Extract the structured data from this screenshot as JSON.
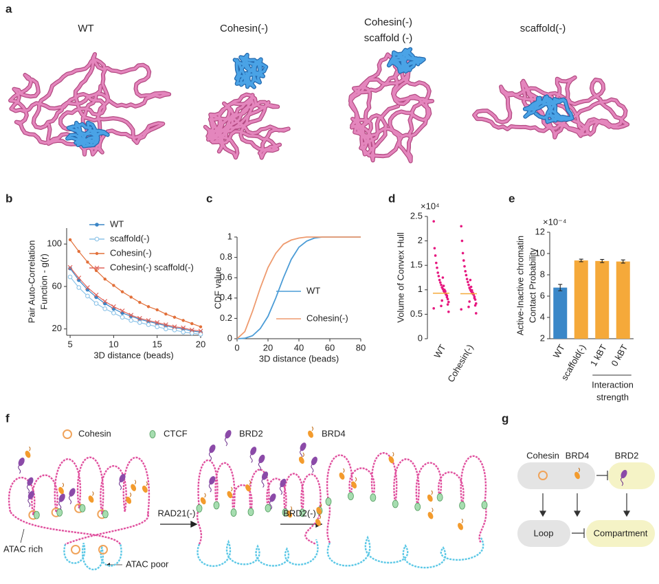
{
  "panel_labels": [
    "a",
    "b",
    "c",
    "d",
    "e",
    "f",
    "g"
  ],
  "panel_a": {
    "titles": [
      [
        "WT"
      ],
      [
        "Cohesin(-)"
      ],
      [
        "Cohesin(-)",
        "scaffold (-)"
      ],
      [
        "scaffold(-)"
      ]
    ]
  },
  "chart_data": [
    {
      "type": "line",
      "xlabel": "3D distance (beads)",
      "ylabel": [
        "Pair Auto-Correlation",
        "Function - g(r)"
      ],
      "x": [
        5,
        6,
        7,
        8,
        9,
        10,
        11,
        12,
        13,
        14,
        15,
        16,
        17,
        18,
        19,
        20
      ],
      "xlim": [
        4.6,
        20
      ],
      "xticks": [
        5,
        10,
        15,
        20
      ],
      "ylim": [
        14,
        115
      ],
      "yticks": [
        20,
        60,
        100
      ],
      "legend": "upper right",
      "series": [
        {
          "name": "WT",
          "color": "#3a85c6",
          "marker": "circle",
          "values": [
            77,
            66,
            57,
            50,
            44,
            39,
            35,
            32,
            29,
            27,
            25,
            23,
            21,
            20,
            18,
            17
          ]
        },
        {
          "name": "scaffold(-)",
          "color": "#8cc3e8",
          "marker": "open-circle",
          "values": [
            69,
            59,
            51,
            44,
            39,
            35,
            31,
            28,
            26,
            24,
            22,
            20,
            19,
            17,
            16,
            15
          ]
        },
        {
          "name": "Cohesin(-)",
          "color": "#e2703a",
          "marker": "dot",
          "values": [
            104,
            93,
            83,
            75,
            67,
            61,
            55,
            50,
            45,
            41,
            38,
            34,
            31,
            28,
            25,
            22
          ]
        },
        {
          "name": "Cohesin(-) scaffold(-)",
          "color": "#e0645a",
          "marker": "x",
          "values": [
            78,
            68,
            59,
            52,
            46,
            41,
            37,
            33,
            30,
            28,
            26,
            24,
            22,
            21,
            19,
            18
          ]
        }
      ]
    },
    {
      "type": "line",
      "xlabel": "3D distance (beads)",
      "ylabel": [
        "CDF value"
      ],
      "x": [
        0,
        5,
        10,
        15,
        20,
        25,
        30,
        35,
        40,
        45,
        50,
        55,
        60,
        65,
        70,
        75,
        80
      ],
      "xlim": [
        0,
        80
      ],
      "xticks": [
        0,
        20,
        40,
        60,
        80
      ],
      "ylim": [
        0,
        1
      ],
      "yticks": [
        0,
        0.2,
        0.4,
        0.6,
        0.8,
        1
      ],
      "legend": "right",
      "series": [
        {
          "name": "WT",
          "color": "#4a9bd6",
          "values": [
            0,
            0.005,
            0.03,
            0.1,
            0.22,
            0.4,
            0.6,
            0.78,
            0.9,
            0.96,
            0.99,
            1,
            1,
            1,
            1,
            1,
            1
          ]
        },
        {
          "name": "Cohesin(-)",
          "color": "#ee9a6e",
          "values": [
            0,
            0.07,
            0.27,
            0.5,
            0.7,
            0.84,
            0.93,
            0.97,
            0.99,
            1,
            1,
            1,
            1,
            1,
            1,
            1,
            1
          ]
        }
      ]
    },
    {
      "type": "strip",
      "ylabel": [
        "Volume of Convex Hull"
      ],
      "multiplier": "×10⁴",
      "categories": [
        "WT",
        "Cohesin(-)"
      ],
      "ylim": [
        0,
        2.5
      ],
      "yticks": [
        0,
        0.5,
        1,
        1.5,
        2,
        2.5
      ],
      "color": "#e6177f",
      "median_color": "#f5a93a",
      "medians": [
        0.93,
        0.92
      ],
      "values": [
        [
          0.62,
          0.75,
          0.81,
          0.88,
          0.9,
          0.93,
          0.95,
          0.98,
          1.02,
          1.05,
          1.1,
          1.15,
          1.2,
          1.28,
          1.35,
          1.45,
          1.55,
          1.7,
          1.85,
          2.4,
          0.55,
          0.7,
          0.85,
          0.92,
          0.97,
          1.0,
          1.08,
          1.25,
          0.78,
          0.67
        ],
        [
          0.6,
          0.72,
          0.8,
          0.86,
          0.9,
          0.92,
          0.95,
          0.97,
          1.0,
          1.04,
          1.1,
          1.16,
          1.22,
          1.3,
          1.38,
          1.48,
          1.6,
          1.75,
          2.0,
          2.3,
          0.52,
          0.68,
          0.83,
          0.91,
          0.94,
          0.99,
          1.06,
          1.2,
          0.76,
          0.65
        ]
      ]
    },
    {
      "type": "bar",
      "ylabel": [
        "Active-Inactive chromatin",
        "Contact Probability"
      ],
      "multiplier": "×10⁻⁴",
      "categories": [
        "WT",
        "scaffold(-)",
        "1 kBT",
        "0 kBT"
      ],
      "values": [
        6.8,
        9.35,
        9.3,
        9.25
      ],
      "errors": [
        0.3,
        0.12,
        0.15,
        0.15
      ],
      "colors": [
        "#3a87c8",
        "#f5a93a",
        "#f5a93a",
        "#f5a93a"
      ],
      "ylim": [
        2,
        12
      ],
      "yticks": [
        2,
        4,
        6,
        8,
        10,
        12
      ],
      "group_label": [
        "Interaction",
        "strength"
      ]
    }
  ],
  "panel_f": {
    "legend": [
      "Cohesin",
      "CTCF",
      "BRD2",
      "BRD4"
    ],
    "annotations": [
      "ATAC rich",
      "ATAC poor"
    ],
    "steps": [
      "RAD21(-)",
      "BRD2(-)"
    ]
  },
  "panel_g": {
    "factors": [
      "Cohesin",
      "BRD4",
      "BRD2"
    ],
    "outcomes": [
      "Loop",
      "Compartment"
    ]
  }
}
